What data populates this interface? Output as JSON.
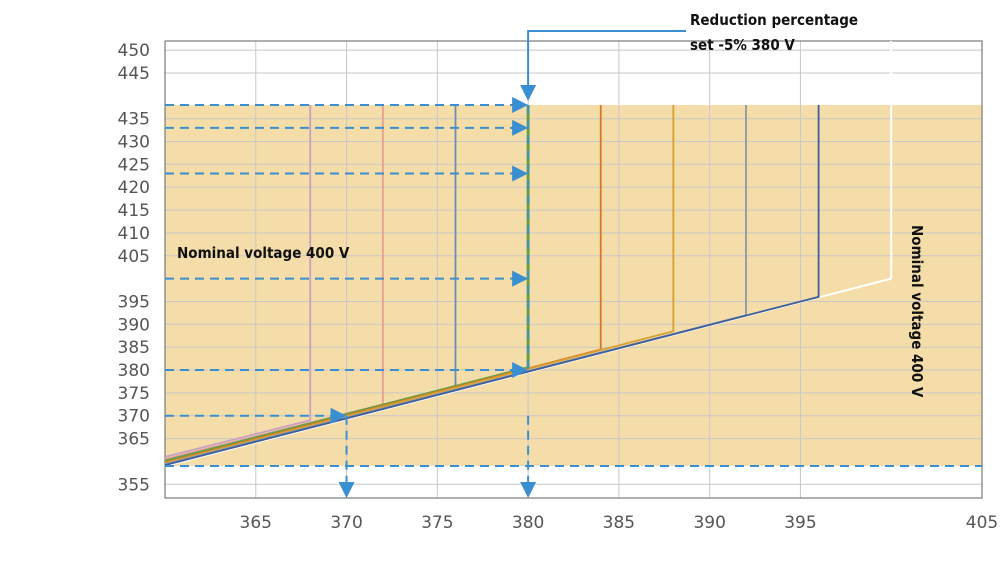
{
  "chart_data": {
    "type": "line",
    "title": "",
    "xlabel": "",
    "ylabel": "",
    "xlim": [
      360,
      405
    ],
    "ylim": [
      352,
      452
    ],
    "x_ticks": [
      "365",
      "370",
      "375",
      "380",
      "385",
      "390",
      "395",
      "405"
    ],
    "x_tick_values": [
      365,
      370,
      375,
      380,
      385,
      390,
      395,
      405
    ],
    "y_ticks": [
      "355",
      "365",
      "370",
      "375",
      "380",
      "385",
      "390",
      "395",
      "405",
      "410",
      "415",
      "420",
      "425",
      "430",
      "435",
      "445",
      "450"
    ],
    "y_tick_values": [
      355,
      365,
      370,
      375,
      380,
      385,
      390,
      395,
      405,
      410,
      415,
      420,
      425,
      430,
      435,
      445,
      450
    ],
    "shaded_region": {
      "x": [
        360,
        405
      ],
      "y": [
        359,
        438
      ],
      "color": "#f4dda8"
    },
    "reference_line": {
      "name": "Nominal voltage 400 V",
      "points": [
        [
          360,
          359
        ],
        [
          400,
          400
        ]
      ],
      "color": "#ffffff"
    },
    "series": [
      {
        "color": "#c9a0c4",
        "points": [
          [
            360,
            361
          ],
          [
            368,
            369
          ],
          [
            368,
            438
          ]
        ]
      },
      {
        "color": "#e6a090",
        "points": [
          [
            360,
            360.5
          ],
          [
            372,
            372.5
          ],
          [
            372,
            438
          ]
        ]
      },
      {
        "color": "#6f8fb0",
        "points": [
          [
            360,
            360.2
          ],
          [
            376,
            376.5
          ],
          [
            376,
            438
          ]
        ]
      },
      {
        "color": "#6aa040",
        "points": [
          [
            360,
            360
          ],
          [
            380,
            380.5
          ],
          [
            380,
            438
          ]
        ]
      },
      {
        "color": "#d6782a",
        "points": [
          [
            360,
            359.8
          ],
          [
            384,
            384.5
          ],
          [
            384,
            438
          ]
        ]
      },
      {
        "color": "#d8a030",
        "points": [
          [
            360,
            359.6
          ],
          [
            388,
            388.5
          ],
          [
            388,
            438
          ]
        ]
      },
      {
        "color": "#8a98a8",
        "points": [
          [
            360,
            359.4
          ],
          [
            392,
            392
          ],
          [
            392,
            438
          ]
        ]
      },
      {
        "color": "#3f5e9a",
        "points": [
          [
            360,
            359.2
          ],
          [
            396,
            396
          ],
          [
            396,
            438
          ]
        ]
      }
    ],
    "dashed_arrows": {
      "color": "#3a8fd0",
      "horizontal": [
        {
          "y": 438,
          "x_from": 360,
          "x_to": 380
        },
        {
          "y": 433,
          "x_from": 360,
          "x_to": 380
        },
        {
          "y": 423,
          "x_from": 360,
          "x_to": 380
        },
        {
          "y": 400,
          "x_from": 360,
          "x_to": 380
        },
        {
          "y": 380,
          "x_from": 360,
          "x_to": 380
        },
        {
          "y": 370,
          "x_from": 360,
          "x_to": 370
        }
      ],
      "vertical": [
        {
          "x": 380,
          "y_from": 370,
          "y_to": 352
        },
        {
          "x": 370,
          "y_from": 370,
          "y_to": 352
        }
      ],
      "limit_line": {
        "y": 359,
        "x_from": 360,
        "x_to": 405
      }
    },
    "annotations": [
      {
        "text": "Reduction percentage",
        "x_word": "top-center"
      },
      {
        "text": "set -5% 380 V",
        "x_word": "top-center"
      },
      {
        "text": "Nominal voltage 400 V",
        "orientation": "horizontal"
      },
      {
        "text": "Nominal voltage 400 V",
        "orientation": "vertical"
      }
    ]
  }
}
